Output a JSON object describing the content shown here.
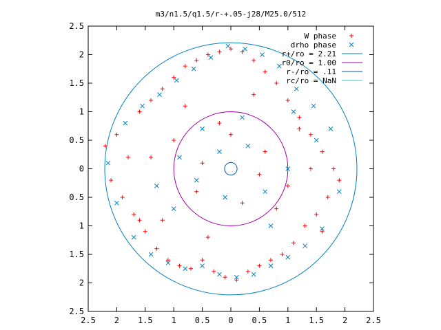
{
  "chart_data": {
    "type": "scatter",
    "title": "m3/n1.5/q1.5/r-+.05-j28/M25.0/512",
    "xlim": [
      -2.5,
      2.5
    ],
    "ylim": [
      -2.5,
      2.5
    ],
    "xticks": [
      -2.5,
      -2,
      -1.5,
      -1,
      -0.5,
      0,
      0.5,
      1,
      1.5,
      2,
      2.5
    ],
    "yticks": [
      -2.5,
      -2,
      -1.5,
      -1,
      -0.5,
      0,
      0.5,
      1,
      1.5,
      2,
      2.5
    ],
    "xtick_labels": [
      "2.5",
      "2",
      "1.5",
      "1",
      "0.5",
      "0",
      "0.5",
      "1",
      "1.5",
      "2",
      "2.5"
    ],
    "ytick_labels": [
      "2.5",
      "2",
      "1.5",
      "1",
      "0.5",
      "0",
      "0.5",
      "1",
      "1.5",
      "2",
      "2.5"
    ],
    "grid": false,
    "legend_position": "top-right",
    "legend": [
      {
        "label": "W phase",
        "marker": "plus",
        "color": "#ff0000"
      },
      {
        "label": "drho phase",
        "marker": "cross",
        "color": "#0080c0"
      },
      {
        "label": "r+/ro = 2.21",
        "marker": "line",
        "color": "#0080c0"
      },
      {
        "label": "r0/ro = 1.00",
        "marker": "line",
        "color": "#a000a0"
      },
      {
        "label": "r-/ro = .11",
        "marker": "line",
        "color": "#0050b0"
      },
      {
        "label": "rc/ro = NaN",
        "marker": "line",
        "color": "#40c0d0"
      }
    ],
    "circles": [
      {
        "name": "r+/ro",
        "radius": 2.21,
        "color": "#0080c0"
      },
      {
        "name": "r0/ro",
        "radius": 1.0,
        "color": "#a000a0"
      },
      {
        "name": "r-/ro",
        "radius": 0.11,
        "color": "#0050b0"
      }
    ],
    "series": [
      {
        "name": "W phase",
        "color": "#ff0000",
        "x": [
          -2.2,
          -2.1,
          -2.0,
          -1.9,
          -1.8,
          -1.7,
          -1.6,
          -1.5,
          -1.4,
          -1.3,
          -1.2,
          -1.1,
          -1.0,
          -0.9,
          -0.8,
          -0.7,
          -0.6,
          -0.5,
          -0.4,
          -0.3,
          -0.2,
          -0.1,
          0.0,
          0.1,
          0.2,
          0.3,
          0.4,
          0.5,
          0.6,
          0.7,
          0.8,
          0.9,
          1.0,
          1.1,
          1.2,
          1.3,
          1.4,
          1.5,
          1.6,
          1.7,
          1.8,
          1.9,
          -1.4,
          -1.0,
          -0.6,
          -0.2,
          0.2,
          0.6,
          1.0,
          1.4,
          -1.2,
          -0.8,
          -0.4,
          0.0,
          0.4,
          0.8,
          1.2,
          -1.6,
          1.6,
          -0.5,
          0.5
        ],
        "y": [
          0.4,
          -0.2,
          0.6,
          -0.5,
          0.2,
          -0.8,
          1.0,
          -1.1,
          1.2,
          -1.4,
          1.4,
          -1.6,
          1.6,
          -1.7,
          1.8,
          -1.75,
          1.9,
          -1.6,
          2.0,
          -1.8,
          2.05,
          -1.9,
          2.1,
          -1.95,
          2.05,
          -1.8,
          1.9,
          -1.7,
          1.7,
          -1.6,
          1.5,
          -1.5,
          1.2,
          -1.3,
          0.9,
          -1.0,
          0.6,
          -0.8,
          0.3,
          -0.5,
          0.0,
          -0.2,
          0.2,
          0.5,
          -0.4,
          0.8,
          -0.6,
          0.3,
          -0.3,
          0.0,
          -0.9,
          1.1,
          -1.2,
          0.6,
          1.3,
          -0.7,
          0.7,
          -0.9,
          -1.1,
          0.1,
          -0.1
        ]
      },
      {
        "name": "drho phase",
        "color": "#0080c0",
        "x": [
          -2.15,
          -2.0,
          -1.85,
          -1.7,
          -1.55,
          -1.4,
          -1.25,
          -1.1,
          -0.95,
          -0.8,
          -0.65,
          -0.5,
          -0.35,
          -0.2,
          -0.05,
          0.1,
          0.25,
          0.4,
          0.55,
          0.7,
          0.85,
          1.0,
          1.15,
          1.3,
          1.45,
          1.6,
          1.75,
          1.9,
          -1.3,
          -0.9,
          -0.5,
          -0.1,
          0.3,
          0.7,
          1.1,
          1.5,
          -1.0,
          -0.6,
          -0.2,
          0.2,
          0.6,
          1.0
        ],
        "y": [
          0.1,
          -0.6,
          0.8,
          -1.2,
          1.1,
          -1.5,
          1.3,
          -1.65,
          1.55,
          -1.75,
          1.75,
          -1.7,
          1.95,
          -1.85,
          2.15,
          -1.9,
          2.1,
          -1.85,
          2.0,
          -1.7,
          1.8,
          -1.55,
          1.4,
          -1.35,
          1.1,
          -1.05,
          0.7,
          -0.4,
          -0.3,
          0.2,
          0.7,
          -0.5,
          0.4,
          -1.0,
          1.0,
          0.5,
          -0.7,
          -0.2,
          0.3,
          0.9,
          -0.4,
          0.0
        ]
      }
    ]
  }
}
